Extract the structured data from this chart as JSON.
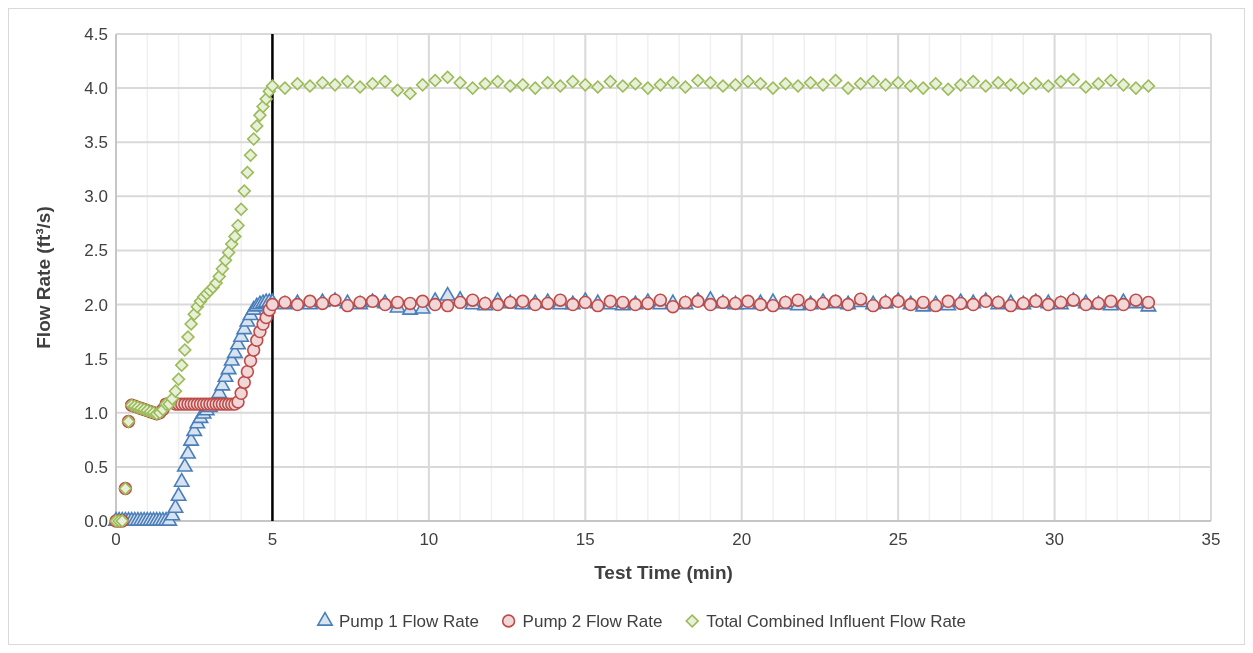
{
  "chart_data": {
    "type": "scatter",
    "xlabel": "Test Time (min)",
    "ylabel": "Flow Rate (ft³/s)",
    "x": [
      0,
      0.1,
      0.2,
      0.3,
      0.4,
      0.5,
      0.6,
      0.7,
      0.8,
      0.9,
      1.0,
      1.1,
      1.2,
      1.3,
      1.4,
      1.5,
      1.6,
      1.7,
      1.8,
      1.9,
      2.0,
      2.1,
      2.2,
      2.3,
      2.4,
      2.5,
      2.6,
      2.7,
      2.8,
      2.9,
      3.0,
      3.1,
      3.2,
      3.3,
      3.4,
      3.5,
      3.6,
      3.7,
      3.8,
      3.9,
      4.0,
      4.1,
      4.2,
      4.3,
      4.4,
      4.5,
      4.6,
      4.7,
      4.8,
      4.9,
      5.0,
      5.4,
      5.8,
      6.2,
      6.6,
      7.0,
      7.4,
      7.8,
      8.2,
      8.6,
      9.0,
      9.4,
      9.8,
      10.2,
      10.6,
      11.0,
      11.4,
      11.8,
      12.2,
      12.6,
      13.0,
      13.4,
      13.8,
      14.2,
      14.6,
      15.0,
      15.4,
      15.8,
      16.2,
      16.6,
      17.0,
      17.4,
      17.8,
      18.2,
      18.6,
      19.0,
      19.4,
      19.8,
      20.2,
      20.6,
      21.0,
      21.4,
      21.8,
      22.2,
      22.6,
      23.0,
      23.4,
      23.8,
      24.2,
      24.6,
      25.0,
      25.4,
      25.8,
      26.2,
      26.6,
      27.0,
      27.4,
      27.8,
      28.2,
      28.6,
      29.0,
      29.4,
      29.8,
      30.2,
      30.6,
      31.0,
      31.4,
      31.8,
      32.2,
      32.6,
      33.0
    ],
    "series": [
      {
        "name": "Pump 1 Flow Rate",
        "color": "#4a7ebb",
        "marker": "triangle",
        "values": [
          0,
          0,
          0,
          0,
          0,
          0,
          0,
          0,
          0,
          0,
          0,
          0,
          0,
          0,
          0,
          0,
          0,
          0,
          0.05,
          0.12,
          0.23,
          0.36,
          0.5,
          0.62,
          0.74,
          0.83,
          0.9,
          0.95,
          0.99,
          1.02,
          1.05,
          null,
          null,
          1.18,
          1.25,
          1.33,
          1.4,
          1.48,
          1.55,
          1.63,
          1.7,
          1.77,
          1.84,
          1.9,
          1.95,
          1.98,
          2.0,
          2.01,
          2.02,
          2.02,
          2.02,
          2.0,
          2.01,
          2.0,
          2.02,
          2.03,
          2.01,
          2.0,
          2.02,
          2.01,
          1.97,
          1.95,
          1.96,
          2.03,
          2.08,
          2.04,
          2.0,
          1.99,
          2.03,
          2.01,
          2.0,
          2.01,
          2.02,
          2.0,
          2.0,
          2.03,
          2.01,
          2.0,
          1.99,
          2.0,
          2.02,
          2.0,
          2.01,
          2.0,
          2.03,
          2.04,
          2.01,
          2.0,
          2.0,
          2.01,
          2.02,
          2.0,
          1.99,
          2.0,
          2.02,
          2.01,
          2.0,
          2.02,
          2.0,
          2.01,
          2.03,
          2.0,
          1.98,
          2.0,
          1.99,
          2.02,
          2.01,
          2.03,
          2.0,
          2.01,
          2.0,
          2.02,
          2.01,
          2.0,
          2.03,
          2.01,
          2.0,
          1.99,
          2.02,
          2.01,
          1.98
        ]
      },
      {
        "name": "Pump 2 Flow Rate",
        "color": "#be4b48",
        "marker": "circle",
        "values": [
          0,
          0,
          0,
          0.3,
          0.92,
          1.07,
          1.06,
          1.05,
          1.04,
          1.03,
          1.02,
          1.01,
          1.0,
          0.99,
          1.0,
          1.03,
          1.08,
          null,
          null,
          1.08,
          1.08,
          1.08,
          1.08,
          1.08,
          1.08,
          1.08,
          1.08,
          1.08,
          1.08,
          1.08,
          1.08,
          1.08,
          1.08,
          1.08,
          1.08,
          1.08,
          1.08,
          1.08,
          1.08,
          1.1,
          1.18,
          1.28,
          1.38,
          1.48,
          1.58,
          1.67,
          1.75,
          1.82,
          1.88,
          1.95,
          2.0,
          2.02,
          2.0,
          2.03,
          2.01,
          2.04,
          1.99,
          2.02,
          2.03,
          2.0,
          2.02,
          2.01,
          2.03,
          2.0,
          1.99,
          2.02,
          2.04,
          2.01,
          2.0,
          2.02,
          2.03,
          2.0,
          2.01,
          2.04,
          2.0,
          2.02,
          1.99,
          2.03,
          2.02,
          2.0,
          2.01,
          2.04,
          1.98,
          2.02,
          2.03,
          2.0,
          2.02,
          2.01,
          2.03,
          2.0,
          1.99,
          2.02,
          2.04,
          2.0,
          2.01,
          2.03,
          2.0,
          2.05,
          1.99,
          2.02,
          2.03,
          2.0,
          2.02,
          1.99,
          2.03,
          2.01,
          2.0,
          2.03,
          2.02,
          1.99,
          2.01,
          2.03,
          2.0,
          2.02,
          2.04,
          2.0,
          2.01,
          2.03,
          2.0,
          2.04,
          2.02
        ]
      },
      {
        "name": "Total Combined Influent Flow Rate",
        "color": "#9bbb59",
        "marker": "diamond",
        "values": [
          0,
          0,
          0,
          0.3,
          0.92,
          1.07,
          1.06,
          1.05,
          1.04,
          1.03,
          1.02,
          1.01,
          1.0,
          0.99,
          1.0,
          1.03,
          1.08,
          1.08,
          1.13,
          1.2,
          1.31,
          1.44,
          1.58,
          1.7,
          1.82,
          1.91,
          1.98,
          2.03,
          2.07,
          2.1,
          2.13,
          2.16,
          2.2,
          2.26,
          2.33,
          2.41,
          2.48,
          2.56,
          2.63,
          2.73,
          2.88,
          3.05,
          3.22,
          3.38,
          3.53,
          3.65,
          3.75,
          3.83,
          3.9,
          3.97,
          4.02,
          4.0,
          4.04,
          4.02,
          4.05,
          4.03,
          4.06,
          4.01,
          4.04,
          4.06,
          3.98,
          3.95,
          4.03,
          4.07,
          4.1,
          4.05,
          4.0,
          4.04,
          4.06,
          4.02,
          4.03,
          4.0,
          4.05,
          4.02,
          4.06,
          4.03,
          4.01,
          4.06,
          4.02,
          4.04,
          4.0,
          4.03,
          4.05,
          4.01,
          4.07,
          4.05,
          4.02,
          4.03,
          4.06,
          4.04,
          4.0,
          4.04,
          4.02,
          4.05,
          4.03,
          4.07,
          4.0,
          4.04,
          4.06,
          4.03,
          4.05,
          4.02,
          4.0,
          4.04,
          3.99,
          4.03,
          4.06,
          4.02,
          4.05,
          4.03,
          4.0,
          4.04,
          4.02,
          4.06,
          4.08,
          4.01,
          4.04,
          4.07,
          4.03,
          4.0,
          4.02
        ]
      }
    ],
    "xlim": [
      0,
      35
    ],
    "xticks": [
      0,
      {
        "value": 1,
        "label": null
      },
      {
        "value": 2,
        "label": null
      },
      {
        "value": 3,
        "label": null
      },
      {
        "value": 4,
        "label": null
      },
      5,
      {
        "value": 6,
        "label": null
      },
      {
        "value": 7,
        "label": null
      },
      {
        "value": 8,
        "label": null
      },
      {
        "value": 9,
        "label": null
      },
      10,
      {
        "value": 11,
        "label": null
      },
      {
        "value": 12,
        "label": null
      },
      {
        "value": 13,
        "label": null
      },
      {
        "value": 14,
        "label": null
      },
      15,
      {
        "value": 16,
        "label": null
      },
      {
        "value": 17,
        "label": null
      },
      {
        "value": 18,
        "label": null
      },
      {
        "value": 19,
        "label": null
      },
      20,
      {
        "value": 21,
        "label": null
      },
      {
        "value": 22,
        "label": null
      },
      {
        "value": 23,
        "label": null
      },
      {
        "value": 24,
        "label": null
      },
      25,
      {
        "value": 26,
        "label": null
      },
      {
        "value": 27,
        "label": null
      },
      {
        "value": 28,
        "label": null
      },
      {
        "value": 29,
        "label": null
      },
      30,
      {
        "value": 31,
        "label": null
      },
      {
        "value": 32,
        "label": null
      },
      {
        "value": 33,
        "label": null
      },
      {
        "value": 34,
        "label": null
      },
      35
    ],
    "ylim": [
      0,
      4.5
    ],
    "yticks": [
      {
        "value": 0,
        "label": "0.0"
      },
      {
        "value": 0.5,
        "label": "0.5"
      },
      {
        "value": 1,
        "label": "1.0"
      },
      {
        "value": 1.5,
        "label": "1.5"
      },
      {
        "value": 2,
        "label": "2.0"
      },
      {
        "value": 2.5,
        "label": "2.5"
      },
      {
        "value": 3,
        "label": "3.0"
      },
      {
        "value": 3.5,
        "label": "3.5"
      },
      {
        "value": 4,
        "label": "4.0"
      },
      {
        "value": 4.5,
        "label": "4.5"
      }
    ],
    "grid": true,
    "legend": "bottom",
    "ref_lines": [
      {
        "axis": "x",
        "value": 5,
        "color": "#000000"
      }
    ]
  }
}
